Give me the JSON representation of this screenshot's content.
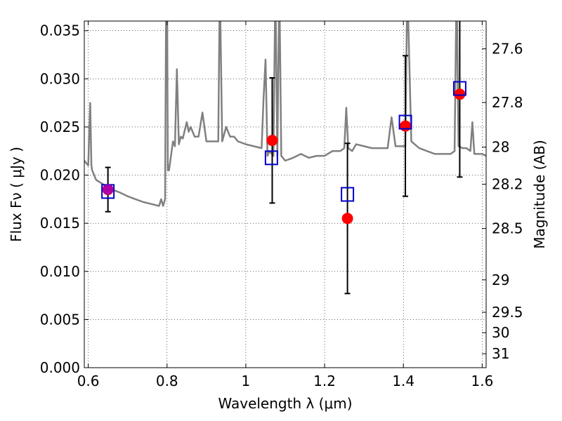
{
  "chart_data": {
    "type": "scatter",
    "xlabel": "Wavelength  λ (μm)",
    "ylabel": "Flux  Fν  ( μJy )",
    "y2label": "Magnitude (AB)",
    "xlim": [
      0.59,
      1.61
    ],
    "ylim": [
      0.0,
      0.036
    ],
    "grid": true,
    "colors": {
      "spectrum": "#808080",
      "observed": "#ff0000",
      "model": "#0000cc",
      "errorbar": "#000000"
    },
    "x_ticks": [
      0.6,
      0.8,
      1.0,
      1.2,
      1.4,
      1.6
    ],
    "x_tick_labels": [
      "0.6",
      "0.8",
      "1",
      "1.2",
      "1.4",
      "1.6"
    ],
    "y_ticks": [
      0.0,
      0.005,
      0.01,
      0.015,
      0.02,
      0.025,
      0.03,
      0.035
    ],
    "y_tick_labels": [
      "0.000",
      "0.005",
      "0.010",
      "0.015",
      "0.020",
      "0.025",
      "0.030",
      "0.035"
    ],
    "y2_ticks": [
      {
        "label": "27.6",
        "mag": 27.6
      },
      {
        "label": "27.8",
        "mag": 27.8
      },
      {
        "label": "28",
        "mag": 28.0
      },
      {
        "label": "28.2",
        "mag": 28.2
      },
      {
        "label": "28.5",
        "mag": 28.5
      },
      {
        "label": "29",
        "mag": 29.0
      },
      {
        "label": "29.5",
        "mag": 29.5
      },
      {
        "label": "30",
        "mag": 30.0
      },
      {
        "label": "31",
        "mag": 31.0
      }
    ],
    "series": [
      {
        "kind": "spectrum",
        "x": [
          0.59,
          0.6,
          0.605,
          0.608,
          0.61,
          0.62,
          0.64,
          0.66,
          0.68,
          0.7,
          0.72,
          0.74,
          0.76,
          0.78,
          0.785,
          0.79,
          0.795,
          0.798,
          0.8,
          0.802,
          0.805,
          0.81,
          0.815,
          0.82,
          0.825,
          0.83,
          0.835,
          0.84,
          0.85,
          0.855,
          0.86,
          0.87,
          0.88,
          0.89,
          0.9,
          0.91,
          0.92,
          0.93,
          0.934,
          0.94,
          0.95,
          0.96,
          0.97,
          0.98,
          1.0,
          1.02,
          1.04,
          1.045,
          1.05,
          1.055,
          1.06,
          1.07,
          1.075,
          1.08,
          1.085,
          1.09,
          1.1,
          1.12,
          1.14,
          1.16,
          1.18,
          1.2,
          1.22,
          1.24,
          1.25,
          1.255,
          1.26,
          1.27,
          1.28,
          1.3,
          1.32,
          1.34,
          1.35,
          1.36,
          1.37,
          1.38,
          1.4,
          1.405,
          1.41,
          1.42,
          1.44,
          1.46,
          1.48,
          1.5,
          1.52,
          1.53,
          1.535,
          1.54,
          1.55,
          1.56,
          1.57,
          1.575,
          1.58,
          1.6,
          1.61
        ],
        "y": [
          0.0215,
          0.021,
          0.0275,
          0.021,
          0.0205,
          0.0195,
          0.019,
          0.0185,
          0.0182,
          0.0178,
          0.0175,
          0.0172,
          0.017,
          0.0168,
          0.0175,
          0.0168,
          0.0175,
          0.04,
          0.04,
          0.0205,
          0.0205,
          0.022,
          0.0235,
          0.023,
          0.031,
          0.0232,
          0.024,
          0.0238,
          0.0255,
          0.0245,
          0.025,
          0.024,
          0.024,
          0.0265,
          0.0235,
          0.0235,
          0.0235,
          0.0235,
          0.04,
          0.0235,
          0.025,
          0.024,
          0.024,
          0.0235,
          0.0232,
          0.023,
          0.0228,
          0.028,
          0.032,
          0.022,
          0.0225,
          0.022,
          0.04,
          0.022,
          0.04,
          0.022,
          0.0215,
          0.0218,
          0.0222,
          0.0218,
          0.022,
          0.022,
          0.0225,
          0.0225,
          0.0228,
          0.027,
          0.0228,
          0.0225,
          0.0232,
          0.023,
          0.0228,
          0.0228,
          0.0228,
          0.0228,
          0.026,
          0.023,
          0.023,
          0.023,
          0.04,
          0.0235,
          0.0228,
          0.0225,
          0.0222,
          0.0222,
          0.0222,
          0.0225,
          0.04,
          0.023,
          0.0228,
          0.0228,
          0.0225,
          0.0255,
          0.0222,
          0.0222,
          0.022
        ]
      },
      {
        "kind": "observed",
        "x": [
          0.65,
          1.067,
          1.258,
          1.405,
          1.543
        ],
        "y": [
          0.0185,
          0.0236,
          0.0155,
          0.0251,
          0.0284
        ],
        "yerr": [
          0.0023,
          0.0065,
          0.0078,
          0.0073,
          0.0086
        ]
      },
      {
        "kind": "model",
        "x": [
          0.65,
          1.065,
          1.258,
          1.405,
          1.543
        ],
        "y": [
          0.0183,
          0.0218,
          0.018,
          0.0255,
          0.029
        ]
      }
    ]
  }
}
